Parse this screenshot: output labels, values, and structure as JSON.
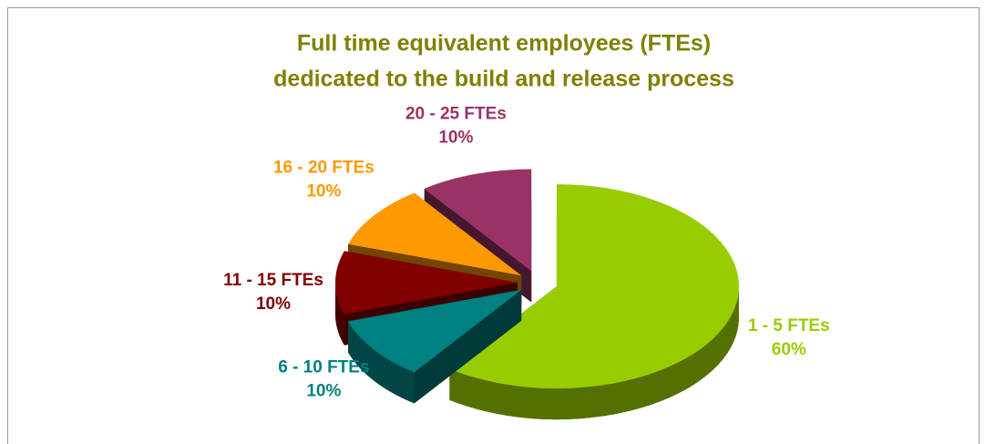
{
  "chart_data": {
    "type": "pie",
    "title": [
      "Full time equivalent employees (FTEs)",
      "dedicated to the build and release process"
    ],
    "categories": [
      "1 - 5 FTEs",
      "6 - 10 FTEs",
      "11 - 15 FTEs",
      "16 - 20 FTEs",
      "20 - 25 FTEs"
    ],
    "values": [
      60,
      10,
      10,
      10,
      10
    ],
    "value_labels": [
      "60%",
      "10%",
      "10%",
      "10%",
      "10%"
    ],
    "colors": [
      "#99cc00",
      "#008080",
      "#800000",
      "#ff9900",
      "#993366"
    ]
  }
}
